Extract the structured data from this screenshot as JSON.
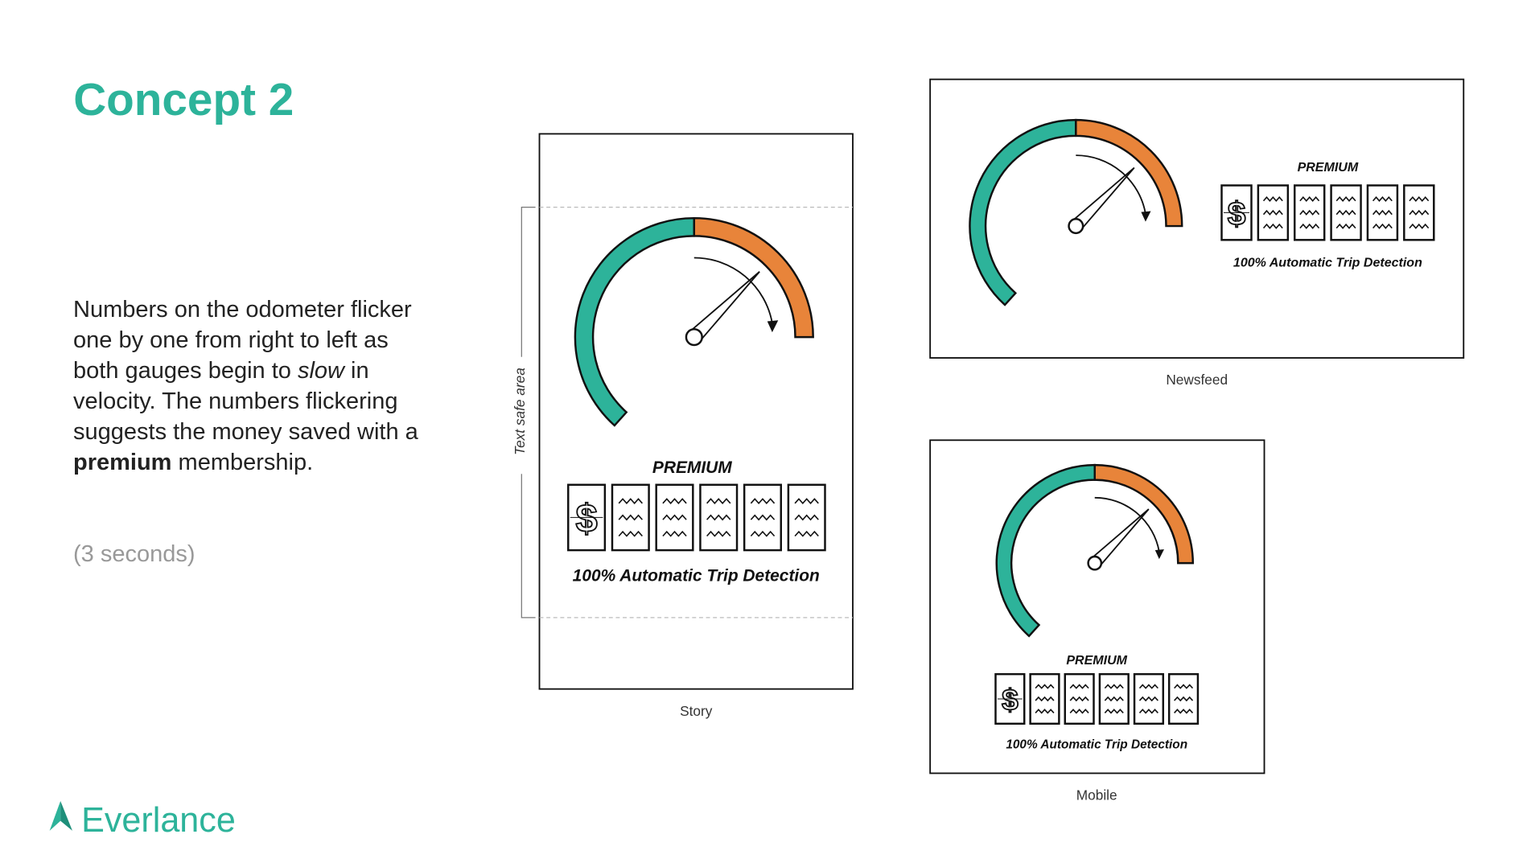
{
  "title": "Concept 2",
  "description": {
    "parts": [
      "Numbers on the odometer flicker one by one from right to left as both gauges begin to ",
      "slow",
      " in velocity. The numbers flickering suggests the money saved with a ",
      "premium",
      " membership."
    ]
  },
  "duration": "(3 seconds)",
  "logo": "Everlance",
  "mockups": [
    {
      "label": "Story",
      "badge": "PREMIUM",
      "caption": "100% Automatic Trip Detection",
      "safe_area_label": "Text safe area"
    },
    {
      "label": "Newsfeed",
      "badge": "PREMIUM",
      "caption": "100% Automatic Trip Detection"
    },
    {
      "label": "Mobile",
      "badge": "PREMIUM",
      "caption": "100% Automatic Trip Detection"
    }
  ]
}
